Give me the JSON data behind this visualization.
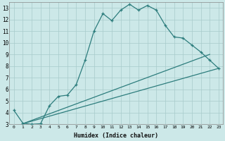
{
  "xlabel": "Humidex (Indice chaleur)",
  "background_color": "#cce8e8",
  "grid_color": "#a8cbcb",
  "line_color": "#2d7d7d",
  "xlim": [
    -0.5,
    23.5
  ],
  "ylim": [
    3,
    13.5
  ],
  "yticks": [
    3,
    4,
    5,
    6,
    7,
    8,
    9,
    10,
    11,
    12,
    13
  ],
  "xticks": [
    0,
    1,
    2,
    3,
    4,
    5,
    6,
    7,
    8,
    9,
    10,
    11,
    12,
    13,
    14,
    15,
    16,
    17,
    18,
    19,
    20,
    21,
    22,
    23
  ],
  "curve1_x": [
    0,
    1,
    2,
    3,
    4,
    5,
    6,
    7,
    8,
    9,
    10,
    11,
    12,
    13,
    14,
    15,
    16,
    17,
    18,
    19,
    20,
    21,
    22,
    23
  ],
  "curve1_y": [
    4.2,
    3.1,
    3.0,
    3.05,
    4.6,
    5.4,
    5.5,
    6.4,
    8.5,
    11.0,
    12.5,
    11.9,
    12.8,
    13.3,
    12.8,
    13.2,
    12.8,
    11.5,
    10.5,
    10.4,
    9.8,
    9.2,
    8.5,
    7.8
  ],
  "line1_x": [
    1,
    23
  ],
  "line1_y": [
    3.05,
    7.8
  ],
  "line2_x": [
    1,
    22
  ],
  "line2_y": [
    3.05,
    9.0
  ]
}
